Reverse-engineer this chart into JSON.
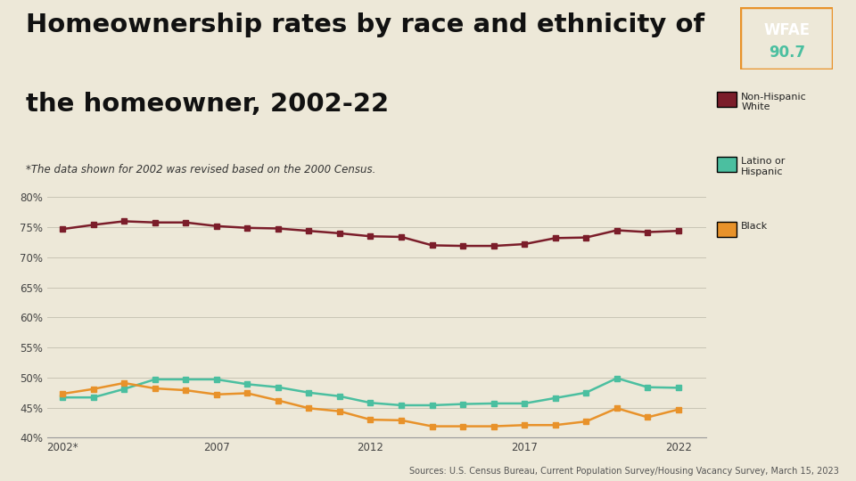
{
  "title_line1": "Homeownership rates by race and ethnicity of",
  "title_line2": "the homeowner, 2002-22",
  "subtitle": "*The data shown for 2002 was revised based on the 2000 Census.",
  "source": "Sources: U.S. Census Bureau, Current Population Survey/Housing Vacancy Survey, March 15, 2023",
  "background_color": "#ede8d8",
  "plot_background_color": "#ede8d8",
  "years": [
    2002,
    2003,
    2004,
    2005,
    2006,
    2007,
    2008,
    2009,
    2010,
    2011,
    2012,
    2013,
    2014,
    2015,
    2016,
    2017,
    2018,
    2019,
    2020,
    2021,
    2022
  ],
  "white": [
    74.7,
    75.4,
    76.0,
    75.8,
    75.8,
    75.2,
    74.9,
    74.8,
    74.4,
    74.0,
    73.5,
    73.4,
    72.0,
    71.9,
    71.9,
    72.2,
    73.2,
    73.3,
    74.5,
    74.2,
    74.4
  ],
  "latino": [
    46.7,
    46.7,
    48.1,
    49.7,
    49.7,
    49.7,
    48.9,
    48.4,
    47.5,
    46.9,
    45.8,
    45.4,
    45.4,
    45.6,
    45.7,
    45.7,
    46.6,
    47.5,
    49.9,
    48.4,
    48.3
  ],
  "black": [
    47.3,
    48.1,
    49.1,
    48.2,
    47.9,
    47.2,
    47.4,
    46.2,
    44.9,
    44.4,
    43.0,
    42.9,
    41.9,
    41.9,
    41.9,
    42.1,
    42.1,
    42.7,
    44.9,
    43.4,
    44.7
  ],
  "white_color": "#7b1d2a",
  "latino_color": "#4bbfa0",
  "black_color": "#e8922a",
  "marker_size": 4,
  "line_width": 1.8,
  "ylim": [
    40,
    80
  ],
  "yticks": [
    40,
    45,
    50,
    55,
    60,
    65,
    70,
    75,
    80
  ],
  "ytick_labels": [
    "40%",
    "45%",
    "50%",
    "55%",
    "60%",
    "65%",
    "70%",
    "75%",
    "80%"
  ],
  "legend_labels": [
    "Non-Hispanic\nWhite",
    "Latino or\nHispanic",
    "Black"
  ],
  "wfae_box_color": "#1a3d5c",
  "wfae_text_color": "#4bbfa0",
  "wfae_border_color": "#e8922a"
}
